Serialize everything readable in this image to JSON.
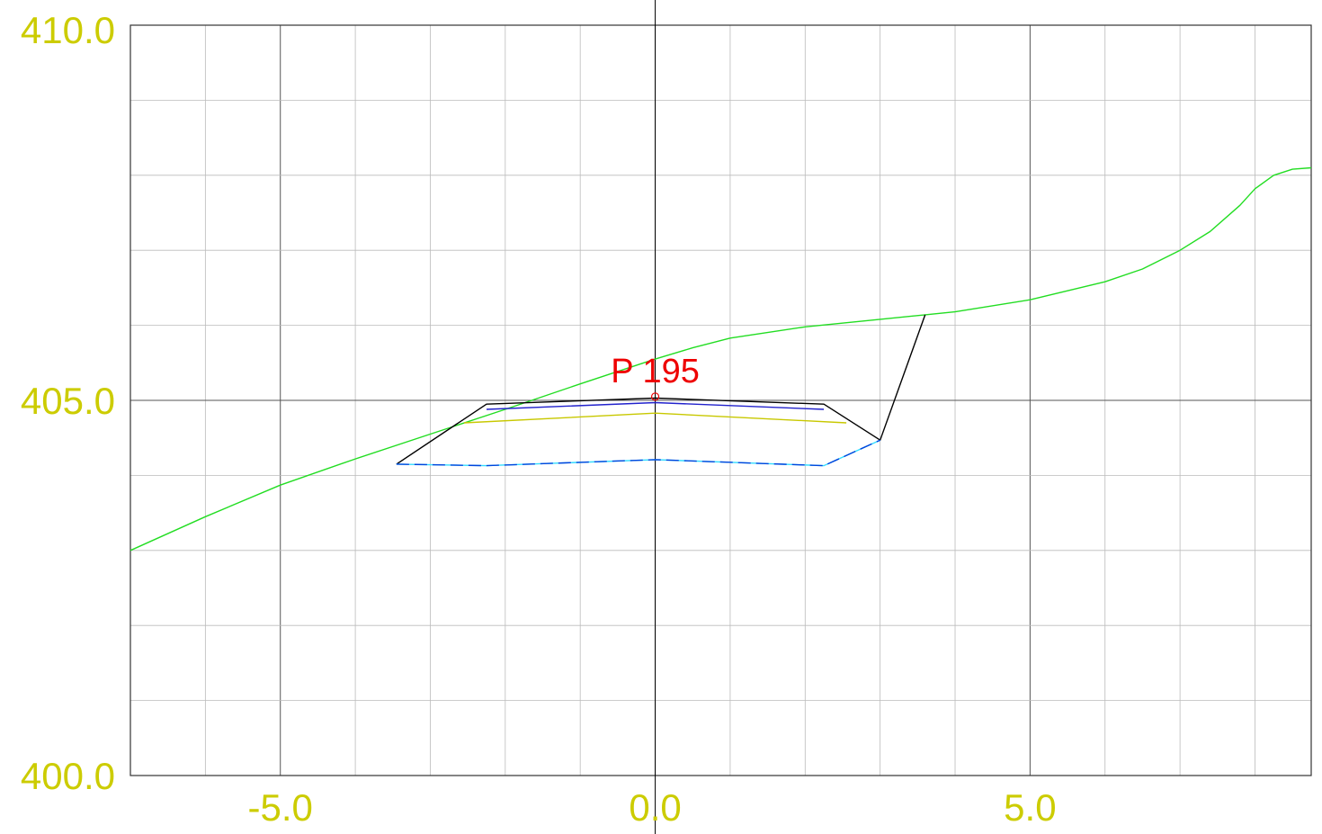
{
  "chart_data": {
    "type": "line",
    "title": "",
    "xlabel": "",
    "ylabel": "",
    "xlim": [
      -7.0,
      8.75
    ],
    "ylim": [
      400.0,
      410.0
    ],
    "x_ticks": [
      -5.0,
      0.0,
      5.0
    ],
    "x_tick_labels": [
      "-5.0",
      "0.0",
      "5.0"
    ],
    "y_ticks": [
      400.0,
      405.0,
      410.0
    ],
    "y_tick_labels": [
      "400.0",
      "405.0",
      "410.0"
    ],
    "grid": true,
    "minor_grid_x_step": 1.0,
    "minor_grid_y_step": 1.0,
    "annotation": {
      "text": "P 195",
      "x": 0.0,
      "y": 405.05
    },
    "series": [
      {
        "color": "#22dd22",
        "style": "solid",
        "x": [
          -7.0,
          -6.0,
          -5.0,
          -4.0,
          -3.0,
          -2.0,
          -1.0,
          0.0,
          0.5,
          1.0,
          2.0,
          3.0,
          3.6,
          4.0,
          5.0,
          6.0,
          6.5,
          7.0,
          7.4,
          7.8,
          8.0,
          8.25,
          8.5,
          8.75
        ],
        "y": [
          403.0,
          403.45,
          403.87,
          404.22,
          404.55,
          404.88,
          405.22,
          405.55,
          405.7,
          405.83,
          405.98,
          406.08,
          406.14,
          406.18,
          406.34,
          406.58,
          406.75,
          407.0,
          407.25,
          407.6,
          407.82,
          408.0,
          408.08,
          408.1
        ]
      },
      {
        "color": "#000000",
        "style": "solid",
        "x": [
          -3.45,
          -2.25,
          0.0,
          2.25,
          3.0,
          3.6
        ],
        "y": [
          404.15,
          404.95,
          405.03,
          404.95,
          404.47,
          406.14
        ]
      },
      {
        "color": "#2222cc",
        "style": "solid",
        "x": [
          -2.25,
          0.0,
          2.25
        ],
        "y": [
          404.88,
          404.97,
          404.88
        ]
      },
      {
        "color": "#c8c800",
        "style": "solid",
        "x": [
          -2.55,
          0.0,
          2.55
        ],
        "y": [
          404.7,
          404.83,
          404.7
        ]
      },
      {
        "color": "#0044dd",
        "style": "dashed",
        "x": [
          -3.45,
          -2.25,
          0.0,
          2.25,
          3.0
        ],
        "y": [
          404.15,
          404.13,
          404.21,
          404.13,
          404.47
        ]
      }
    ],
    "colors": {
      "tick_label": "#cccc00",
      "annotation": "#ee0000",
      "axis": "#333333",
      "grid": "#bbbbbb"
    }
  }
}
